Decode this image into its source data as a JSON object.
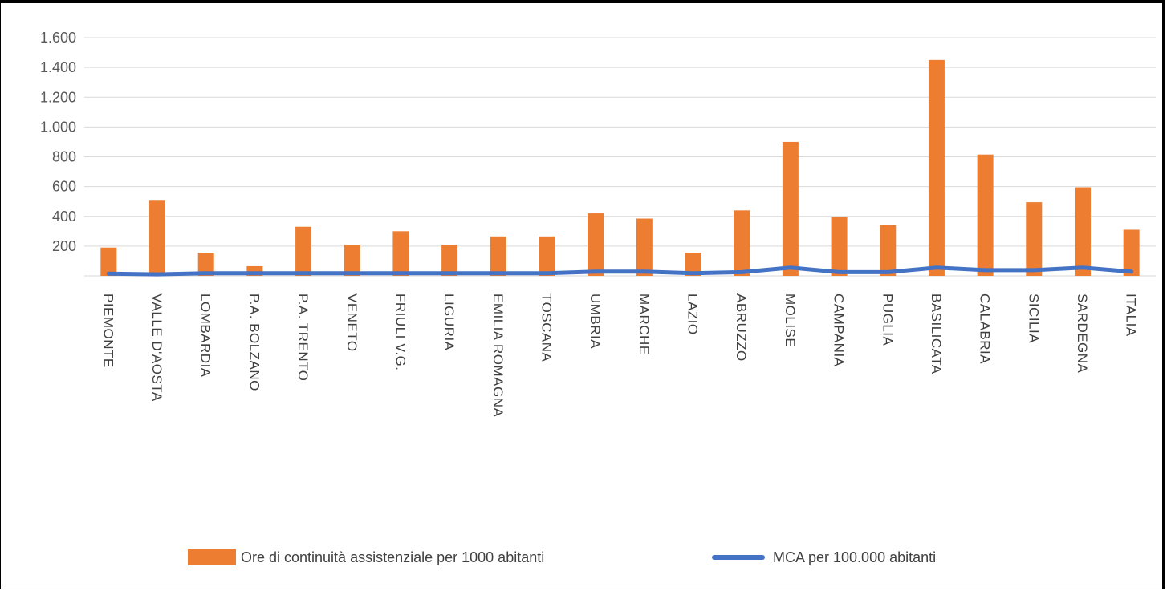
{
  "chart_data": {
    "type": "bar",
    "categories": [
      "PIEMONTE",
      "VALLE D'AOSTA",
      "LOMBARDIA",
      "P.A. BOLZANO",
      "P.A. TRENTO",
      "VENETO",
      "FRIULI V.G.",
      "LIGURIA",
      "EMILIA ROMAGNA",
      "TOSCANA",
      "UMBRIA",
      "MARCHE",
      "LAZIO",
      "ABRUZZO",
      "MOLISE",
      "CAMPANIA",
      "PUGLIA",
      "BASILICATA",
      "CALABRIA",
      "SICILIA",
      "SARDEGNA",
      "ITALIA"
    ],
    "series": [
      {
        "name": "Ore di continuità assistenziale per 1000 abitanti",
        "type": "bar",
        "color": "#ED7D31",
        "values": [
          190,
          505,
          155,
          65,
          330,
          210,
          300,
          210,
          265,
          265,
          420,
          385,
          155,
          440,
          900,
          395,
          340,
          1450,
          815,
          495,
          595,
          310
        ]
      },
      {
        "name": "MCA per 100.000 abitanti",
        "type": "line",
        "color": "#4472C4",
        "values": [
          15,
          10,
          18,
          18,
          18,
          18,
          18,
          18,
          18,
          18,
          28,
          28,
          18,
          25,
          55,
          25,
          25,
          55,
          38,
          38,
          55,
          28
        ]
      }
    ],
    "yticks": [
      "200",
      "400",
      "600",
      "800",
      "1.000",
      "1.200",
      "1.400",
      "1.600"
    ],
    "ylim": [
      0,
      1600
    ],
    "grid": true,
    "legend_position": "bottom"
  }
}
